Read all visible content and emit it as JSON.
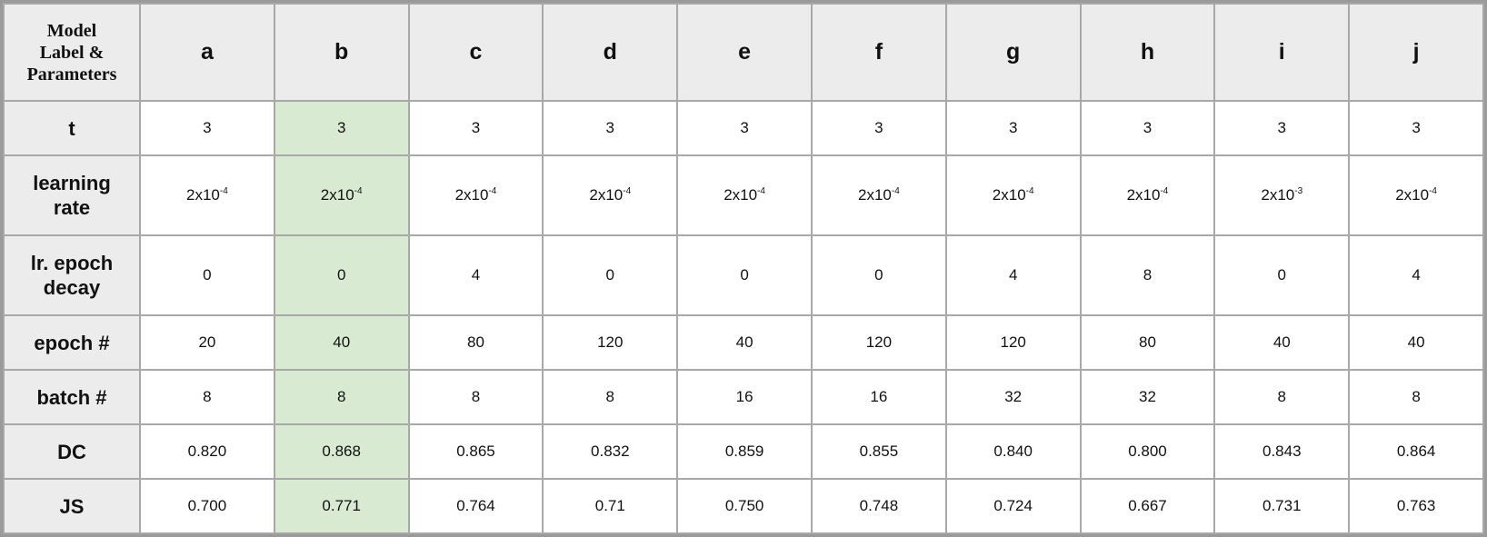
{
  "corner_label": "Model\nLabel &\nParameters",
  "columns": [
    "a",
    "b",
    "c",
    "d",
    "e",
    "f",
    "g",
    "h",
    "i",
    "j"
  ],
  "highlight_column": "b",
  "highlight_color": "#d9ead3",
  "header_bg": "#ececec",
  "rows": [
    {
      "label": "t",
      "values": [
        "3",
        "3",
        "3",
        "3",
        "3",
        "3",
        "3",
        "3",
        "3",
        "3"
      ]
    },
    {
      "label": "learning rate",
      "values": [
        {
          "base": "2x10",
          "exp": "-4"
        },
        {
          "base": "2x10",
          "exp": "-4"
        },
        {
          "base": "2x10",
          "exp": "-4"
        },
        {
          "base": "2x10",
          "exp": "-4"
        },
        {
          "base": "2x10",
          "exp": "-4"
        },
        {
          "base": "2x10",
          "exp": "-4"
        },
        {
          "base": "2x10",
          "exp": "-4"
        },
        {
          "base": "2x10",
          "exp": "-4"
        },
        {
          "base": "2x10",
          "exp": "-3"
        },
        {
          "base": "2x10",
          "exp": "-4"
        }
      ]
    },
    {
      "label": "lr. epoch decay",
      "values": [
        "0",
        "0",
        "4",
        "0",
        "0",
        "0",
        "4",
        "8",
        "0",
        "4"
      ]
    },
    {
      "label": "epoch #",
      "values": [
        "20",
        "40",
        "80",
        "120",
        "40",
        "120",
        "120",
        "80",
        "40",
        "40"
      ]
    },
    {
      "label": "batch #",
      "values": [
        "8",
        "8",
        "8",
        "8",
        "16",
        "16",
        "32",
        "32",
        "8",
        "8"
      ]
    },
    {
      "label": "DC",
      "values": [
        "0.820",
        "0.868",
        "0.865",
        "0.832",
        "0.859",
        "0.855",
        "0.840",
        "0.800",
        "0.843",
        "0.864"
      ]
    },
    {
      "label": "JS",
      "values": [
        "0.700",
        "0.771",
        "0.764",
        "0.71",
        "0.750",
        "0.748",
        "0.724",
        "0.667",
        "0.731",
        "0.763"
      ]
    }
  ]
}
